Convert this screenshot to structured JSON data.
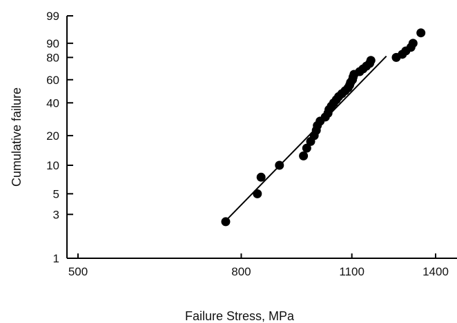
{
  "chart_data": {
    "type": "scatter",
    "title": "",
    "xlabel": "Failure Stress, MPa",
    "ylabel": "Cumulative failure",
    "x_scale": "log",
    "y_scale": "weibull-probability",
    "xlim": [
      500,
      1400
    ],
    "ylim": [
      1,
      99
    ],
    "x_ticks": [
      500,
      800,
      1100,
      1400
    ],
    "x_tick_labels": [
      "500",
      "800",
      "1100",
      "1400"
    ],
    "y_ticks": [
      1,
      3,
      5,
      10,
      20,
      40,
      60,
      80,
      90,
      99
    ],
    "y_tick_labels": [
      "1",
      "3",
      "5",
      "10",
      "20",
      "40",
      "60",
      "80",
      "90",
      "99"
    ],
    "grid": false,
    "legend": "none",
    "marker_color": "#000000",
    "line_color": "#000000",
    "series": [
      {
        "values": [
          {
            "x": 765,
            "y": 2.5
          },
          {
            "x": 838,
            "y": 5
          },
          {
            "x": 847,
            "y": 7.5
          },
          {
            "x": 893,
            "y": 10
          },
          {
            "x": 957,
            "y": 12.5
          },
          {
            "x": 966,
            "y": 15
          },
          {
            "x": 977,
            "y": 17.5
          },
          {
            "x": 987,
            "y": 20
          },
          {
            "x": 993,
            "y": 22.5
          },
          {
            "x": 996,
            "y": 25
          },
          {
            "x": 1004,
            "y": 27.5
          },
          {
            "x": 1019,
            "y": 30
          },
          {
            "x": 1027,
            "y": 32.5
          },
          {
            "x": 1030,
            "y": 35
          },
          {
            "x": 1037,
            "y": 37.5
          },
          {
            "x": 1044,
            "y": 40
          },
          {
            "x": 1052,
            "y": 42.5
          },
          {
            "x": 1059,
            "y": 45
          },
          {
            "x": 1069,
            "y": 47.5
          },
          {
            "x": 1079,
            "y": 50
          },
          {
            "x": 1088,
            "y": 52.5
          },
          {
            "x": 1093,
            "y": 55
          },
          {
            "x": 1096,
            "y": 57.5
          },
          {
            "x": 1102,
            "y": 60
          },
          {
            "x": 1104,
            "y": 62.5
          },
          {
            "x": 1107,
            "y": 65
          },
          {
            "x": 1125,
            "y": 67.5
          },
          {
            "x": 1136,
            "y": 70
          },
          {
            "x": 1147,
            "y": 72.5
          },
          {
            "x": 1158,
            "y": 75
          },
          {
            "x": 1162,
            "y": 77.5
          },
          {
            "x": 1250,
            "y": 80
          },
          {
            "x": 1272,
            "y": 82.5
          },
          {
            "x": 1285,
            "y": 85
          },
          {
            "x": 1304,
            "y": 87.5
          },
          {
            "x": 1312,
            "y": 90
          },
          {
            "x": 1342,
            "y": 95
          }
        ]
      }
    ],
    "fit_line": {
      "x": [
        763,
        1215
      ],
      "y": [
        2.5,
        81
      ]
    }
  }
}
